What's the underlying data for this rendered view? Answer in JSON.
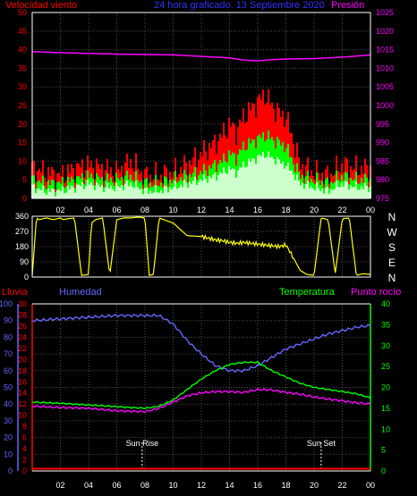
{
  "header": {
    "wind_label": "Velocidad viento",
    "title": "24 hora graficado. 13 Septiembre 2020",
    "pressure_label": "Presión",
    "dir_letters": [
      "N",
      "W",
      "S",
      "E",
      "N"
    ],
    "rain_label": "Lluvia",
    "humidity_label": "Humedad",
    "temp_label": "Temperatura",
    "dew_label": "Punto rocío",
    "sunrise_label": "Sun Rise",
    "sunset_label": "Sun Set"
  },
  "colors": {
    "wind_gust": "#ff0000",
    "wind_avg": "#00ff00",
    "wind_fill": "#ccffcc",
    "pressure": "#ff00ff",
    "direction": "#ffff00",
    "humidity": "#6666ff",
    "temperature": "#00ff00",
    "dew_point": "#ff00ff",
    "rain": "#ff0000",
    "grid": "#505050",
    "axes": "#ffffff"
  },
  "chart_data": [
    {
      "type": "area",
      "title": "24 hora graficado. 13 Septiembre 2020",
      "x_unit": "hour",
      "x_ticks": [
        "02",
        "04",
        "06",
        "08",
        "10",
        "12",
        "14",
        "16",
        "18",
        "20",
        "22",
        "00"
      ],
      "left_axis": {
        "label": "Velocidad viento",
        "ticks": [
          0,
          5,
          10,
          15,
          20,
          25,
          30,
          35,
          40,
          45,
          50
        ],
        "range": [
          0,
          50
        ]
      },
      "right_axis": {
        "label": "Presión",
        "ticks": [
          975,
          980,
          985,
          990,
          995,
          1000,
          1005,
          1010,
          1015,
          1020,
          1025
        ],
        "range": [
          975,
          1025
        ]
      },
      "series": [
        {
          "name": "gust",
          "axis": "left",
          "x": [
            0,
            1,
            2,
            3,
            4,
            5,
            6,
            7,
            8,
            9,
            10,
            11,
            12,
            13,
            13.5,
            14,
            14.5,
            15,
            15.5,
            16,
            16.5,
            17,
            17.5,
            18,
            18.5,
            19,
            20,
            21,
            22,
            23,
            24
          ],
          "values": [
            8,
            7,
            6,
            8,
            9,
            8,
            7,
            10,
            6,
            6,
            7,
            9,
            12,
            15,
            17,
            20,
            18,
            22,
            24,
            26,
            28,
            25,
            23,
            22,
            16,
            9,
            7,
            6,
            9,
            8,
            8
          ]
        },
        {
          "name": "average",
          "axis": "left",
          "x": [
            0,
            1,
            2,
            3,
            4,
            5,
            6,
            7,
            8,
            9,
            10,
            11,
            12,
            13,
            13.5,
            14,
            14.5,
            15,
            15.5,
            16,
            16.5,
            17,
            17.5,
            18,
            18.5,
            19,
            20,
            21,
            22,
            23,
            24
          ],
          "values": [
            5,
            4,
            4,
            5,
            6,
            5,
            5,
            6,
            4,
            4,
            5,
            6,
            7,
            9,
            10,
            12,
            11,
            14,
            15,
            16,
            17,
            16,
            15,
            14,
            10,
            6,
            5,
            4,
            6,
            5,
            5
          ]
        },
        {
          "name": "fill",
          "axis": "left",
          "x": [
            0,
            1,
            2,
            3,
            4,
            5,
            6,
            7,
            8,
            9,
            10,
            11,
            12,
            13,
            13.5,
            14,
            14.5,
            15,
            15.5,
            16,
            16.5,
            17,
            17.5,
            18,
            18.5,
            19,
            20,
            21,
            22,
            23,
            24
          ],
          "values": [
            3,
            2,
            2,
            3,
            4,
            3,
            3,
            4,
            2,
            2,
            3,
            4,
            5,
            6,
            7,
            8,
            7,
            9,
            10,
            11,
            12,
            11,
            10,
            9,
            7,
            4,
            3,
            2,
            4,
            3,
            3
          ]
        },
        {
          "name": "pressure",
          "axis": "right",
          "x": [
            0,
            2,
            4,
            6,
            8,
            10,
            12,
            14,
            15,
            16,
            17,
            18,
            20,
            22,
            24
          ],
          "values": [
            1014.5,
            1014.2,
            1014.0,
            1013.8,
            1013.7,
            1013.6,
            1013.2,
            1012.8,
            1012.2,
            1012.0,
            1012.3,
            1012.5,
            1012.6,
            1013.0,
            1013.6
          ]
        }
      ]
    },
    {
      "type": "line",
      "x_unit": "hour",
      "y_axis": {
        "ticks": [
          0,
          90,
          180,
          270,
          360
        ],
        "range": [
          0,
          360
        ]
      },
      "direction_letters": [
        "N",
        "W",
        "S",
        "E",
        "N"
      ],
      "series": [
        {
          "name": "direction",
          "x": [
            0,
            0.3,
            0.5,
            1.0,
            1.5,
            2.0,
            2.2,
            2.5,
            3.0,
            3.5,
            4.0,
            4.2,
            4.5,
            5.0,
            5.5,
            6.0,
            6.5,
            7.0,
            7.5,
            8.0,
            8.3,
            8.6,
            9.0,
            10,
            11,
            12,
            12.5,
            13,
            13.5,
            14,
            14.5,
            15,
            15.5,
            16,
            16.5,
            17,
            17.5,
            18,
            18.5,
            19,
            19.5,
            20,
            20.5,
            21,
            21.5,
            22,
            22.5,
            23,
            23.5,
            24
          ],
          "values": [
            10,
            350,
            340,
            350,
            340,
            350,
            340,
            345,
            350,
            10,
            15,
            320,
            340,
            350,
            10,
            340,
            350,
            350,
            355,
            350,
            10,
            15,
            350,
            320,
            245,
            240,
            230,
            220,
            215,
            205,
            200,
            205,
            200,
            195,
            190,
            185,
            180,
            190,
            120,
            40,
            15,
            10,
            350,
            340,
            20,
            345,
            350,
            10,
            20,
            15
          ]
        }
      ]
    },
    {
      "type": "line",
      "x_unit": "hour",
      "x_ticks": [
        "02",
        "04",
        "06",
        "08",
        "10",
        "12",
        "14",
        "16",
        "18",
        "20",
        "22",
        "00"
      ],
      "left_axis_humidity": {
        "label": "Humedad",
        "ticks": [
          0,
          10,
          20,
          30,
          40,
          50,
          60,
          70,
          80,
          90,
          100
        ],
        "range": [
          0,
          100
        ]
      },
      "left_axis_rain": {
        "label": "Lluvia",
        "ticks": [
          0,
          2,
          4,
          6,
          8,
          10,
          12,
          14,
          16,
          18,
          20,
          22,
          24,
          26,
          28,
          30
        ],
        "range": [
          0,
          30
        ]
      },
      "right_axis": {
        "label": "Temperatura / Punto rocío",
        "ticks": [
          0,
          5,
          10,
          15,
          20,
          25,
          30,
          35,
          40
        ],
        "range": [
          0,
          40
        ]
      },
      "annotations": [
        {
          "label": "Sun Rise",
          "x": 7.8
        },
        {
          "label": "Sun Set",
          "x": 20.5
        }
      ],
      "series": [
        {
          "name": "humidity",
          "axis": "humidity",
          "x": [
            0,
            2,
            4,
            6,
            8,
            9,
            10,
            11,
            12,
            13,
            14,
            15,
            16,
            17,
            18,
            19,
            20,
            21,
            22,
            23,
            24
          ],
          "values": [
            90,
            91,
            92,
            93,
            93,
            93,
            88,
            78,
            70,
            63,
            60,
            60,
            63,
            68,
            73,
            76,
            79,
            82,
            84,
            86,
            87
          ]
        },
        {
          "name": "temperature",
          "axis": "right",
          "x": [
            0,
            2,
            4,
            6,
            8,
            9,
            10,
            11,
            12,
            13,
            14,
            15,
            16,
            17,
            18,
            19,
            20,
            21,
            22,
            23,
            24
          ],
          "values": [
            16.5,
            16.2,
            15.8,
            15.4,
            15.0,
            15.5,
            17,
            19.5,
            22,
            24,
            25.5,
            26,
            26,
            24,
            22.5,
            21,
            20,
            19.5,
            19,
            18.5,
            17.5
          ]
        },
        {
          "name": "dew_point",
          "axis": "right",
          "x": [
            0,
            2,
            4,
            6,
            8,
            9,
            10,
            11,
            12,
            13,
            14,
            15,
            16,
            17,
            18,
            19,
            20,
            21,
            22,
            23,
            24
          ],
          "values": [
            15.5,
            15.2,
            15,
            14.4,
            14.2,
            15,
            16.5,
            18,
            18.7,
            19,
            19,
            18.8,
            19.5,
            19.4,
            18.8,
            18.4,
            17.7,
            17.2,
            16.8,
            16.3,
            16
          ]
        },
        {
          "name": "rain",
          "axis": "rain",
          "x": [
            0,
            24
          ],
          "values": [
            0.4,
            0.4
          ]
        }
      ]
    }
  ]
}
